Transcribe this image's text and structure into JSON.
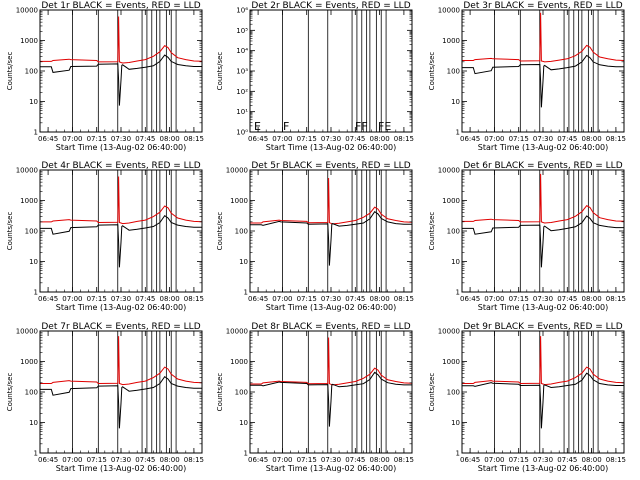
{
  "colors": {
    "events": "#000000",
    "lld": "#e00000",
    "axes": "#000000"
  },
  "common": {
    "xlabel": "Start Time (13-Aug-02 06:40:00)",
    "ylabel": "Counts/sec",
    "x_ticks": [
      "06:45",
      "07:00",
      "07:15",
      "07:30",
      "07:45",
      "08:00",
      "08:15"
    ],
    "x_tick_minutes": [
      45,
      60,
      75,
      90,
      105,
      120,
      135
    ],
    "xlim_minutes": [
      40,
      140
    ],
    "vlines_minutes": [
      60,
      76,
      88,
      103,
      106,
      109,
      112,
      114,
      118,
      121,
      124
    ]
  },
  "chart_data": [
    {
      "type": "line",
      "title": "Det 1r BLACK = Events, RED = LLD",
      "ylim": [
        1,
        15000
      ],
      "log_y": true,
      "y_ticks": [
        "1",
        "10",
        "100",
        "1000",
        "10000"
      ],
      "annotations": [],
      "series": [
        {
          "name": "Events",
          "x": [
            40,
            47,
            48,
            58,
            59,
            75,
            76,
            88,
            88.5,
            89,
            90,
            90.5,
            91,
            95,
            100,
            105,
            110,
            114,
            117,
            119,
            121,
            125,
            130,
            135,
            140
          ],
          "y": [
            170,
            170,
            110,
            130,
            175,
            180,
            210,
            215,
            60,
            8,
            60,
            190,
            200,
            140,
            150,
            165,
            185,
            260,
            430,
            360,
            260,
            205,
            185,
            175,
            175
          ]
        },
        {
          "name": "LLD",
          "x": [
            40,
            47,
            48,
            58,
            59,
            75,
            76,
            88,
            88.5,
            89,
            90,
            91,
            95,
            100,
            105,
            110,
            114,
            117,
            119,
            121,
            125,
            130,
            135,
            140
          ],
          "y": [
            260,
            260,
            280,
            310,
            300,
            280,
            250,
            255,
            9000,
            250,
            240,
            230,
            240,
            270,
            300,
            390,
            560,
            900,
            780,
            520,
            350,
            300,
            270,
            265
          ]
        }
      ]
    },
    {
      "type": "line",
      "title": "Det 2r BLACK = Events, RED = LLD",
      "ylim": [
        1,
        1000000
      ],
      "log_y": true,
      "y_ticks": [
        "10⁰",
        "10¹",
        "10²",
        "10³",
        "10⁴",
        "10⁵",
        "10⁶"
      ],
      "annotations": [
        "E",
        "F",
        "FF",
        "FE"
      ],
      "series": []
    },
    {
      "type": "line",
      "title": "Det 3r BLACK = Events, RED = LLD",
      "ylim": [
        1,
        15000
      ],
      "log_y": true,
      "y_ticks": [
        "1",
        "10",
        "100",
        "1000",
        "10000"
      ],
      "annotations": [],
      "series": [
        {
          "name": "Events",
          "x": [
            40,
            47,
            48,
            58,
            59,
            75,
            76,
            88,
            88.5,
            89,
            90,
            90.5,
            91,
            95,
            100,
            105,
            110,
            114,
            117,
            119,
            121,
            125,
            130,
            135,
            140
          ],
          "y": [
            160,
            160,
            100,
            125,
            165,
            175,
            200,
            205,
            55,
            7,
            55,
            180,
            190,
            135,
            145,
            160,
            180,
            250,
            420,
            350,
            250,
            200,
            180,
            170,
            170
          ]
        },
        {
          "name": "LLD",
          "x": [
            40,
            47,
            48,
            58,
            59,
            75,
            76,
            88,
            88.5,
            89,
            90,
            91,
            95,
            100,
            105,
            110,
            114,
            117,
            119,
            121,
            125,
            130,
            135,
            140
          ],
          "y": [
            280,
            280,
            300,
            330,
            320,
            300,
            270,
            275,
            12000,
            270,
            260,
            250,
            260,
            290,
            320,
            410,
            580,
            920,
            800,
            540,
            370,
            320,
            290,
            280
          ]
        }
      ]
    },
    {
      "type": "line",
      "title": "Det 4r BLACK = Events, RED = LLD",
      "ylim": [
        1,
        15000
      ],
      "log_y": true,
      "y_ticks": [
        "1",
        "10",
        "100",
        "1000",
        "10000"
      ],
      "annotations": [],
      "series": [
        {
          "name": "Events",
          "x": [
            40,
            47,
            48,
            58,
            59,
            75,
            76,
            88,
            88.5,
            89,
            90,
            90.5,
            91,
            95,
            100,
            105,
            110,
            114,
            117,
            119,
            121,
            125,
            130,
            135,
            140
          ],
          "y": [
            150,
            150,
            95,
            120,
            160,
            170,
            195,
            200,
            50,
            7,
            50,
            175,
            185,
            130,
            140,
            155,
            175,
            240,
            410,
            340,
            240,
            195,
            175,
            165,
            165
          ]
        },
        {
          "name": "LLD",
          "x": [
            40,
            47,
            48,
            58,
            59,
            75,
            76,
            88,
            88.5,
            89,
            90,
            91,
            95,
            100,
            105,
            110,
            114,
            117,
            119,
            121,
            125,
            130,
            135,
            140
          ],
          "y": [
            250,
            250,
            270,
            300,
            290,
            270,
            240,
            245,
            9000,
            240,
            230,
            220,
            230,
            260,
            290,
            380,
            540,
            880,
            760,
            500,
            340,
            290,
            260,
            255
          ]
        }
      ]
    },
    {
      "type": "line",
      "title": "Det 5r BLACK = Events, RED = LLD",
      "ylim": [
        1,
        15000
      ],
      "log_y": true,
      "y_ticks": [
        "1",
        "10",
        "100",
        "1000",
        "10000"
      ],
      "annotations": [],
      "series": [
        {
          "name": "Events",
          "x": [
            40,
            47,
            48,
            58,
            59,
            75,
            76,
            88,
            88.5,
            89,
            90,
            90.5,
            91,
            95,
            100,
            105,
            110,
            114,
            117,
            119,
            121,
            125,
            130,
            135,
            140
          ],
          "y": [
            200,
            200,
            190,
            260,
            250,
            230,
            210,
            215,
            60,
            8,
            60,
            210,
            220,
            180,
            190,
            210,
            230,
            320,
            560,
            470,
            330,
            250,
            220,
            210,
            210
          ]
        },
        {
          "name": "LLD",
          "x": [
            40,
            47,
            48,
            58,
            59,
            75,
            76,
            88,
            88.5,
            89,
            90,
            91,
            95,
            100,
            105,
            110,
            114,
            117,
            119,
            121,
            125,
            130,
            135,
            140
          ],
          "y": [
            230,
            230,
            250,
            290,
            280,
            260,
            235,
            240,
            8000,
            235,
            225,
            215,
            225,
            250,
            280,
            360,
            500,
            800,
            690,
            460,
            320,
            280,
            250,
            245
          ]
        }
      ]
    },
    {
      "type": "line",
      "title": "Det 6r BLACK = Events, RED = LLD",
      "ylim": [
        1,
        15000
      ],
      "log_y": true,
      "y_ticks": [
        "1",
        "10",
        "100",
        "1000",
        "10000"
      ],
      "annotations": [],
      "series": [
        {
          "name": "Events",
          "x": [
            40,
            47,
            48,
            58,
            59,
            75,
            76,
            88,
            88.5,
            89,
            90,
            90.5,
            91,
            95,
            100,
            105,
            110,
            114,
            117,
            119,
            121,
            125,
            130,
            135,
            140
          ],
          "y": [
            150,
            150,
            95,
            115,
            155,
            165,
            190,
            195,
            50,
            7,
            50,
            170,
            180,
            125,
            135,
            150,
            170,
            235,
            400,
            330,
            235,
            190,
            170,
            160,
            160
          ]
        },
        {
          "name": "LLD",
          "x": [
            40,
            47,
            48,
            58,
            59,
            75,
            76,
            88,
            88.5,
            89,
            90,
            91,
            95,
            100,
            105,
            110,
            114,
            117,
            119,
            121,
            125,
            130,
            135,
            140
          ],
          "y": [
            260,
            260,
            280,
            310,
            300,
            280,
            250,
            255,
            11000,
            250,
            240,
            230,
            240,
            270,
            300,
            390,
            560,
            900,
            780,
            520,
            350,
            300,
            270,
            265
          ]
        }
      ]
    },
    {
      "type": "line",
      "title": "Det 7r BLACK = Events, RED = LLD",
      "ylim": [
        1,
        15000
      ],
      "log_y": true,
      "y_ticks": [
        "1",
        "10",
        "100",
        "1000",
        "10000"
      ],
      "annotations": [],
      "series": [
        {
          "name": "Events",
          "x": [
            40,
            47,
            48,
            58,
            59,
            75,
            76,
            88,
            88.5,
            89,
            90,
            90.5,
            91,
            95,
            100,
            105,
            110,
            114,
            117,
            119,
            121,
            125,
            130,
            135,
            140
          ],
          "y": [
            150,
            150,
            95,
            120,
            160,
            170,
            195,
            200,
            50,
            7,
            50,
            175,
            185,
            130,
            140,
            155,
            175,
            240,
            410,
            340,
            240,
            195,
            175,
            165,
            165
          ]
        },
        {
          "name": "LLD",
          "x": [
            40,
            47,
            48,
            58,
            59,
            75,
            76,
            88,
            88.5,
            89,
            90,
            91,
            95,
            100,
            105,
            110,
            114,
            117,
            119,
            121,
            125,
            130,
            135,
            140
          ],
          "y": [
            240,
            240,
            260,
            300,
            290,
            270,
            240,
            245,
            10000,
            240,
            230,
            220,
            230,
            260,
            290,
            380,
            540,
            870,
            750,
            500,
            340,
            290,
            260,
            255
          ]
        }
      ]
    },
    {
      "type": "line",
      "title": "Det 8r BLACK = Events, RED = LLD",
      "ylim": [
        1,
        15000
      ],
      "log_y": true,
      "y_ticks": [
        "1",
        "10",
        "100",
        "1000",
        "10000"
      ],
      "annotations": [],
      "series": [
        {
          "name": "Events",
          "x": [
            40,
            47,
            48,
            58,
            59,
            75,
            76,
            88,
            88.5,
            89,
            90,
            90.5,
            91,
            95,
            100,
            105,
            110,
            114,
            117,
            119,
            121,
            125,
            130,
            135,
            140
          ],
          "y": [
            210,
            210,
            200,
            270,
            260,
            240,
            215,
            220,
            60,
            8,
            60,
            215,
            225,
            185,
            195,
            215,
            235,
            330,
            580,
            480,
            340,
            255,
            225,
            215,
            215
          ]
        },
        {
          "name": "LLD",
          "x": [
            40,
            47,
            48,
            58,
            59,
            75,
            76,
            88,
            88.5,
            89,
            90,
            91,
            95,
            100,
            105,
            110,
            114,
            117,
            119,
            121,
            125,
            130,
            135,
            140
          ],
          "y": [
            230,
            230,
            250,
            290,
            280,
            260,
            235,
            240,
            9000,
            235,
            225,
            215,
            225,
            250,
            280,
            360,
            500,
            800,
            690,
            460,
            320,
            280,
            250,
            245
          ]
        }
      ]
    },
    {
      "type": "line",
      "title": "Det 9r BLACK = Events, RED = LLD",
      "ylim": [
        1,
        15000
      ],
      "log_y": true,
      "y_ticks": [
        "1",
        "10",
        "100",
        "1000",
        "10000"
      ],
      "annotations": [],
      "series": [
        {
          "name": "Events",
          "x": [
            40,
            47,
            48,
            58,
            59,
            75,
            76,
            88,
            88.5,
            89,
            90,
            90.5,
            91,
            95,
            100,
            105,
            110,
            114,
            117,
            119,
            121,
            125,
            130,
            135,
            140
          ],
          "y": [
            200,
            200,
            190,
            255,
            245,
            225,
            205,
            210,
            55,
            7,
            55,
            205,
            215,
            175,
            185,
            205,
            225,
            310,
            540,
            450,
            320,
            240,
            215,
            205,
            205
          ]
        },
        {
          "name": "LLD",
          "x": [
            40,
            47,
            48,
            58,
            59,
            75,
            76,
            88,
            88.5,
            89,
            90,
            91,
            95,
            100,
            105,
            110,
            114,
            117,
            119,
            121,
            125,
            130,
            135,
            140
          ],
          "y": [
            240,
            240,
            260,
            300,
            290,
            270,
            240,
            245,
            10000,
            240,
            230,
            220,
            230,
            260,
            290,
            380,
            540,
            870,
            750,
            500,
            340,
            290,
            260,
            255
          ]
        }
      ]
    }
  ]
}
